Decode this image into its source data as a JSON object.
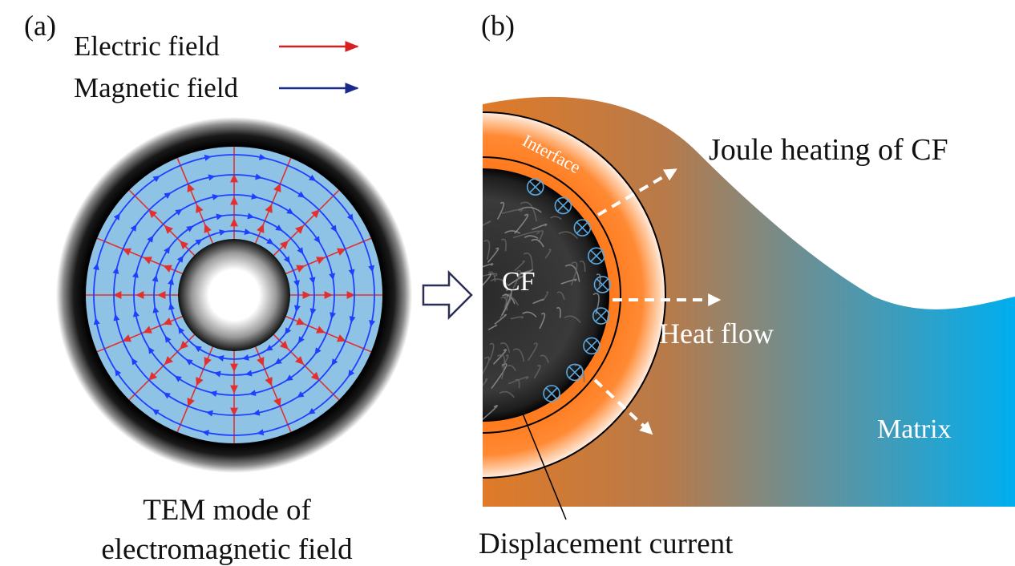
{
  "panel_a": {
    "label": "(a)",
    "legend": {
      "electric_label": "Electric field",
      "magnetic_label": "Magnetic field",
      "electric_color": "#d82020",
      "magnetic_color": "#1a2a8c"
    },
    "caption_line1": "TEM mode of",
    "caption_line2": "electromagnetic field",
    "colors": {
      "disk_fill": "#8ec3e6",
      "field_line": "#1f3fff",
      "electric_line": "#e23030"
    }
  },
  "transition_arrow": {
    "icon": "outline-right-arrow-icon"
  },
  "panel_b": {
    "label": "(b)",
    "cf_label": "CF",
    "interface_label": "Interface",
    "heat_flow_label": "Heat flow",
    "matrix_label": "Matrix",
    "joule_label": "Joule heating of CF",
    "displacement_label": "Displacement current",
    "colors": {
      "gradient_start": "#e07a28",
      "gradient_end": "#00aeef",
      "interface_orange": "#ff7414",
      "current_symbol": "#5aa8e0"
    }
  }
}
